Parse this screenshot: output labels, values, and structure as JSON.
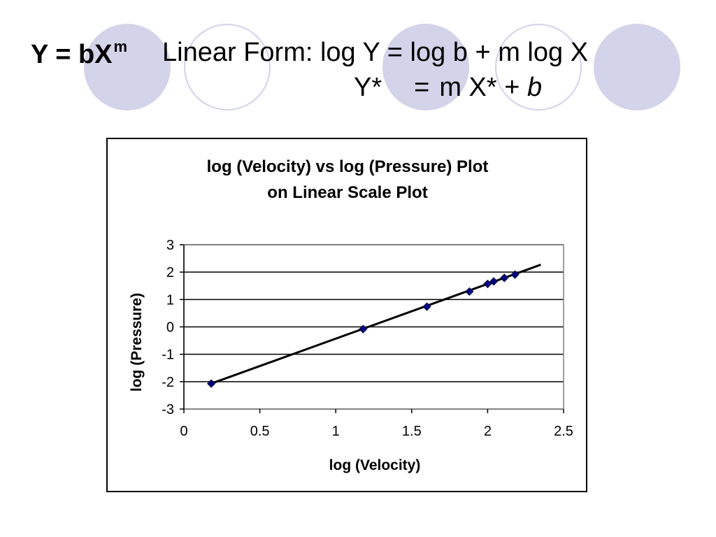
{
  "slide": {
    "formula_power": "Y = bX",
    "formula_power_exp": "m",
    "formula_linear": "Linear Form:  log Y = log b + m log X",
    "formula_star_y": "Y*",
    "formula_star_eq": "=",
    "formula_star_mx": "m X* +",
    "formula_star_b": "b"
  },
  "colors": {
    "circle_fill": "#d3d3ea",
    "marker": "#000080",
    "line": "#000000"
  },
  "chart_data": {
    "type": "scatter",
    "title_line1": "log (Velocity) vs log (Pressure) Plot",
    "title_line2": "on Linear Scale Plot",
    "xlabel": "log (Velocity)",
    "ylabel": "log (Pressure)",
    "xlim": [
      0,
      2.5
    ],
    "ylim": [
      -3,
      3
    ],
    "xticks": [
      "0",
      "0.5",
      "1",
      "1.5",
      "2",
      "2.5"
    ],
    "yticks": [
      "3",
      "2",
      "1",
      "0",
      "-1",
      "-2",
      "-3"
    ],
    "grid": "horizontal major gridlines",
    "legend": "none",
    "points": [
      {
        "x": 0.18,
        "y": -2.07
      },
      {
        "x": 1.18,
        "y": -0.08
      },
      {
        "x": 1.6,
        "y": 0.74
      },
      {
        "x": 1.88,
        "y": 1.29
      },
      {
        "x": 2.0,
        "y": 1.57
      },
      {
        "x": 2.04,
        "y": 1.66
      },
      {
        "x": 2.11,
        "y": 1.79
      },
      {
        "x": 2.18,
        "y": 1.91
      }
    ],
    "trendline": [
      {
        "x": 0.18,
        "y": -2.07
      },
      {
        "x": 2.35,
        "y": 2.27
      }
    ]
  }
}
